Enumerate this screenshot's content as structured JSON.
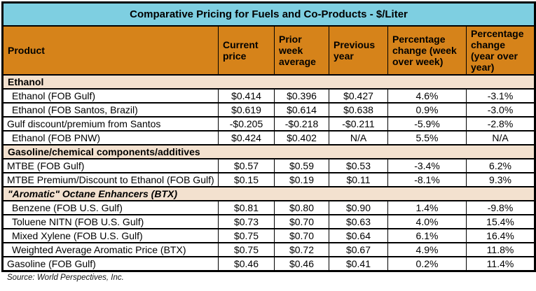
{
  "chart_data": {
    "type": "table",
    "title": "Comparative Pricing for Fuels and Co-Products - $/Liter",
    "columns": [
      "Product",
      "Current price",
      "Prior week average",
      "Previous year",
      "Percentage change (week over week)",
      "Percentage change (year over year)"
    ],
    "groups": [
      {
        "header": "Ethanol",
        "header_italic": false,
        "rows": [
          {
            "product": "Ethanol (FOB Gulf)",
            "indent": 1,
            "values": [
              "$0.414",
              "$0.396",
              "$0.427",
              "4.6%",
              "-3.1%"
            ]
          },
          {
            "product": "Ethanol (FOB Santos, Brazil)",
            "indent": 1,
            "values": [
              "$0.619",
              "$0.614",
              "$0.638",
              "0.9%",
              "-3.0%"
            ]
          },
          {
            "product": "Gulf discount/premium from Santos",
            "indent": 0,
            "values": [
              "-$0.205",
              "-$0.218",
              "-$0.211",
              "-5.9%",
              "-2.8%"
            ]
          },
          {
            "product": "Ethanol (FOB PNW)",
            "indent": 1,
            "values": [
              "$0.424",
              "$0.402",
              "N/A",
              "5.5%",
              "N/A"
            ]
          }
        ]
      },
      {
        "header": "Gasoline/chemical components/additives",
        "header_italic": false,
        "rows": [
          {
            "product": "MTBE (FOB Gulf)",
            "indent": 0,
            "values": [
              "$0.57",
              "$0.59",
              "$0.53",
              "-3.4%",
              "6.2%"
            ]
          },
          {
            "product": "MTBE Premium/Discount to Ethanol (FOB Gulf)",
            "indent": 0,
            "values": [
              "$0.15",
              "$0.19",
              "$0.11",
              "-8.1%",
              "9.3%"
            ]
          }
        ]
      },
      {
        "header": "\"Aromatic\" Octane Enhancers (BTX)",
        "header_italic": true,
        "rows": [
          {
            "product": "Benzene (FOB U.S. Gulf)",
            "indent": 1,
            "values": [
              "$0.81",
              "$0.80",
              "$0.90",
              "1.4%",
              "-9.8%"
            ]
          },
          {
            "product": "Toluene NITN (FOB U.S. Gulf)",
            "indent": 1,
            "values": [
              "$0.73",
              "$0.70",
              "$0.63",
              "4.0%",
              "15.4%"
            ]
          },
          {
            "product": "Mixed Xylene (FOB U.S. Gulf)",
            "indent": 1,
            "values": [
              "$0.75",
              "$0.70",
              "$0.64",
              "6.1%",
              "16.4%"
            ]
          },
          {
            "product": "Weighted Average Aromatic Price (BTX)",
            "indent": 1,
            "values": [
              "$0.75",
              "$0.72",
              "$0.67",
              "4.9%",
              "11.8%"
            ]
          }
        ]
      },
      {
        "header": null,
        "header_italic": false,
        "rows": [
          {
            "product": "Gasoline (FOB Gulf)",
            "indent": 0,
            "values": [
              "$0.46",
              "$0.46",
              "$0.41",
              "0.2%",
              "11.4%"
            ]
          }
        ]
      }
    ],
    "source": "Source: World Perspectives, Inc."
  },
  "colors": {
    "title_bg": "#7ECFE1",
    "header_bg": "#D6831A",
    "section_bg": "#F3E1CF",
    "row_bg": "#FFFFFF",
    "border": "#000000",
    "text": "#000000"
  }
}
